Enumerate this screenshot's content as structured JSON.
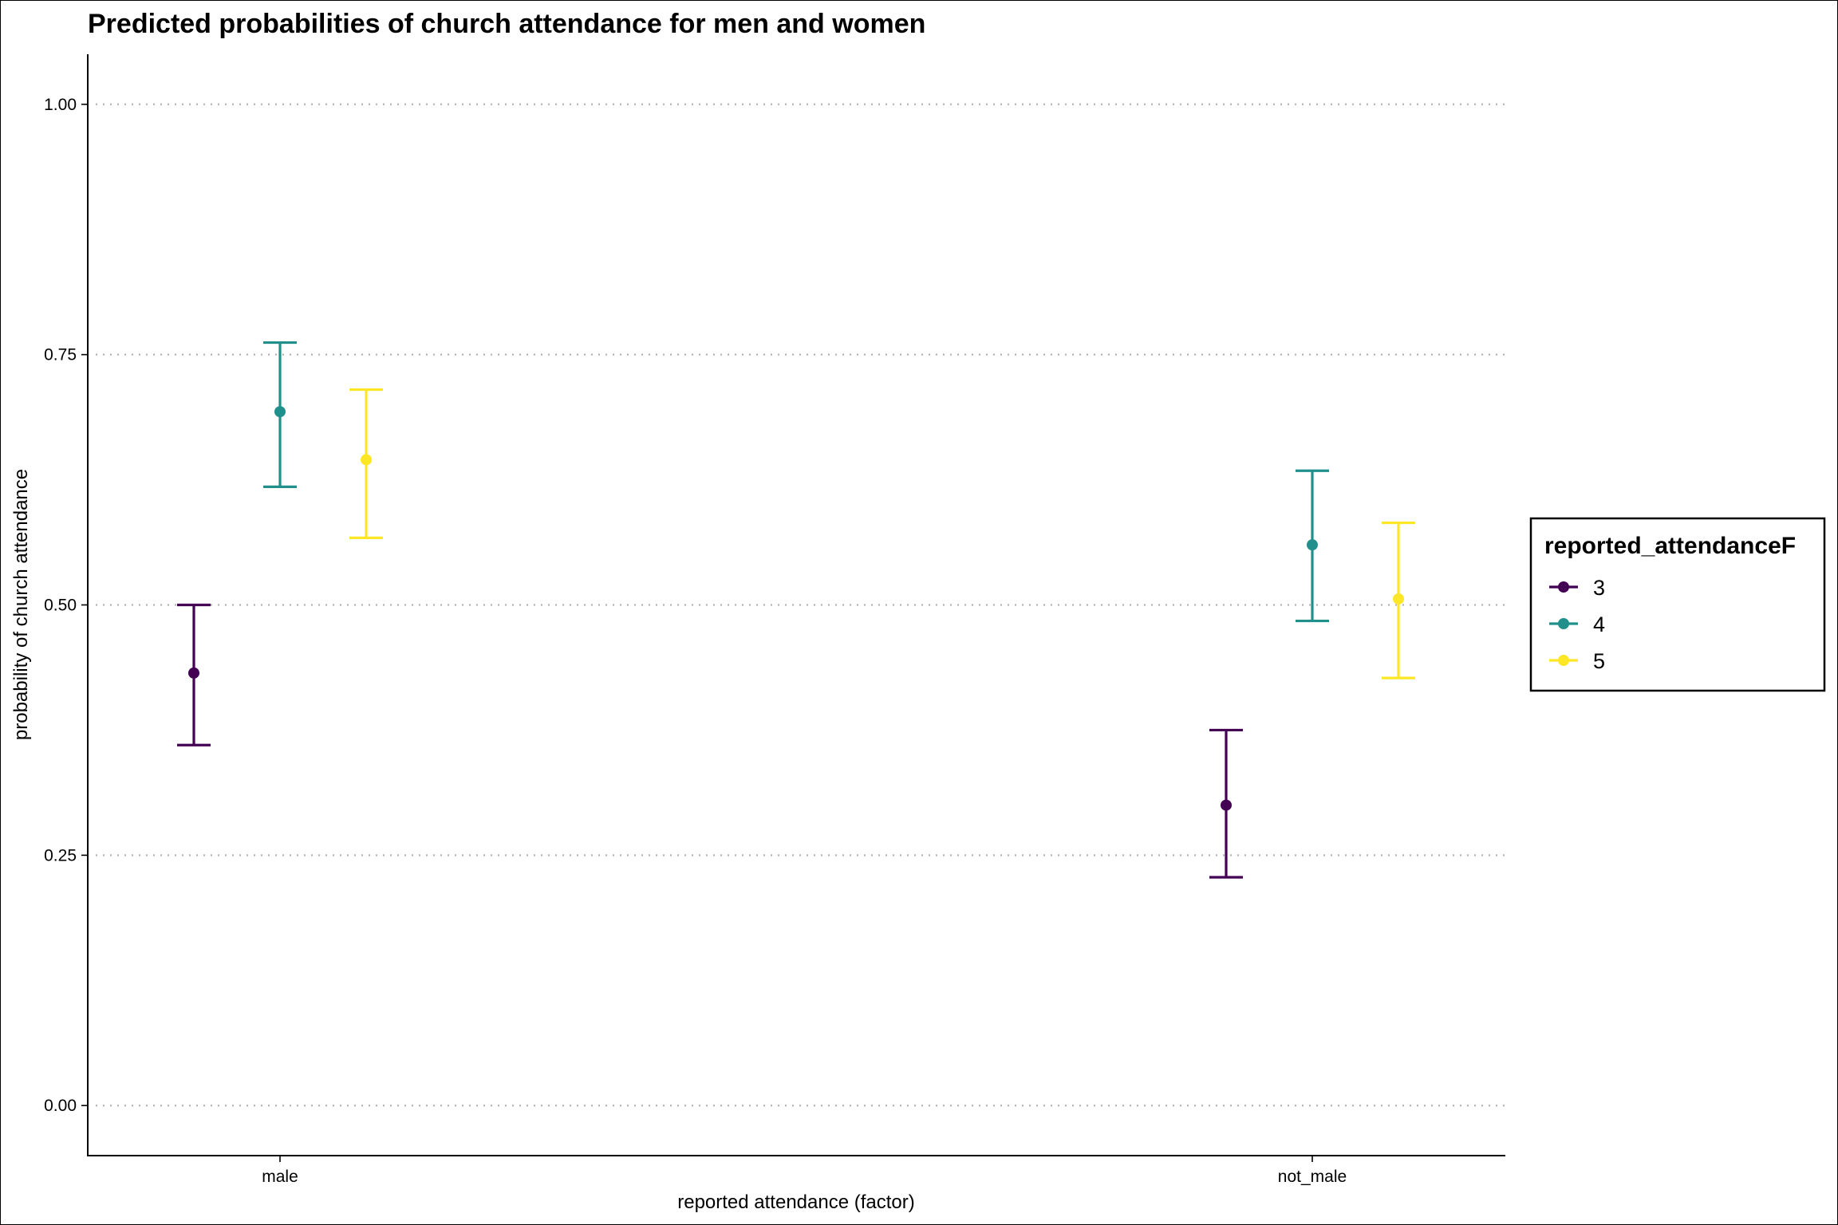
{
  "chart_data": {
    "type": "errorbar",
    "title": "Predicted probabilities of church attendance for men and women",
    "xlabel": "reported attendance (factor)",
    "ylabel": "probability of church attendance",
    "categories": [
      "male",
      "not_male"
    ],
    "ylim": [
      -0.05,
      1.05
    ],
    "yticks": [
      0.0,
      0.25,
      0.5,
      0.75,
      1.0
    ],
    "ytick_labels": [
      "0.00",
      "0.25",
      "0.50",
      "0.75",
      "1.00"
    ],
    "grid": "horizontal dotted",
    "legend": {
      "title": "reported_attendanceF",
      "placement": "right"
    },
    "series": [
      {
        "name": "3",
        "color": "#440154",
        "values": [
          0.432,
          0.3
        ],
        "lower": [
          0.36,
          0.228
        ],
        "upper": [
          0.5,
          0.375
        ]
      },
      {
        "name": "4",
        "color": "#21908C",
        "values": [
          0.693,
          0.56
        ],
        "lower": [
          0.618,
          0.484
        ],
        "upper": [
          0.762,
          0.634
        ]
      },
      {
        "name": "5",
        "color": "#FDE725",
        "values": [
          0.645,
          0.506
        ],
        "lower": [
          0.567,
          0.427
        ],
        "upper": [
          0.715,
          0.582
        ]
      }
    ]
  }
}
